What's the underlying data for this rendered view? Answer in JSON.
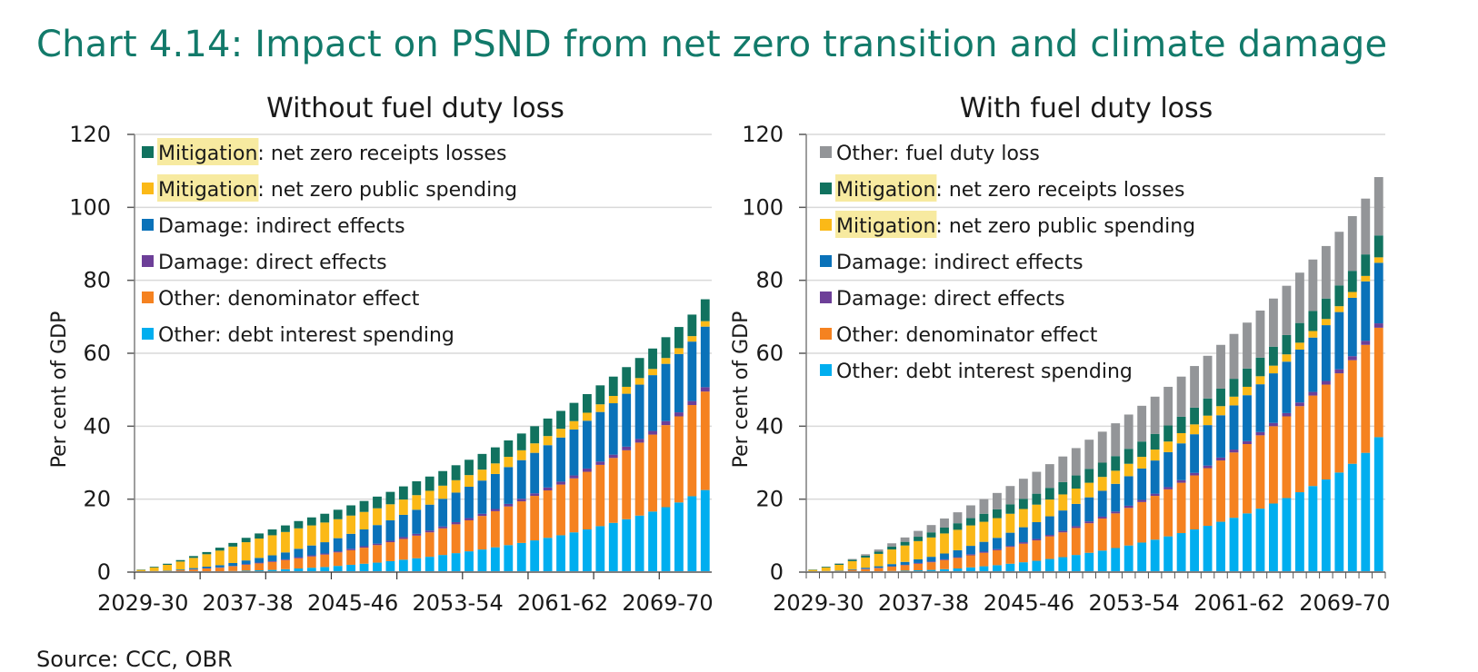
{
  "title": "Chart 4.14: Impact on PSND from net zero transition and climate damage",
  "source": "Source: CCC, OBR",
  "highlight_word": "Mitigation",
  "colors": {
    "fuel_duty": "#939598",
    "receipts": "#11725f",
    "public_spending": "#fbb917",
    "indirect": "#0a72b9",
    "direct": "#6d3f98",
    "denominator": "#f58220",
    "debt_interest": "#00aeef",
    "highlight": "#f7eaa0",
    "title": "#127a6a"
  },
  "chart_data": [
    {
      "type": "bar",
      "stacked": true,
      "title": "Without fuel duty loss",
      "xlabel": "",
      "ylabel": "Per cent of GDP",
      "ylim": [
        0,
        120
      ],
      "yticks": [
        0,
        20,
        40,
        60,
        80,
        100,
        120
      ],
      "grid": true,
      "legend_position": "top-left",
      "xtick_labels": [
        "2029-30",
        "2037-38",
        "2045-46",
        "2053-54",
        "2061-62",
        "2069-70"
      ],
      "categories": [
        "2029-30",
        "2030-31",
        "2031-32",
        "2032-33",
        "2033-34",
        "2034-35",
        "2035-36",
        "2036-37",
        "2037-38",
        "2038-39",
        "2039-40",
        "2040-41",
        "2041-42",
        "2042-43",
        "2043-44",
        "2044-45",
        "2045-46",
        "2046-47",
        "2047-48",
        "2048-49",
        "2049-50",
        "2050-51",
        "2051-52",
        "2052-53",
        "2053-54",
        "2054-55",
        "2055-56",
        "2056-57",
        "2057-58",
        "2058-59",
        "2059-60",
        "2060-61",
        "2061-62",
        "2062-63",
        "2063-64",
        "2064-65",
        "2065-66",
        "2066-67",
        "2067-68",
        "2068-69",
        "2069-70",
        "2070-71",
        "2071-72",
        "2072-73"
      ],
      "legend": [
        {
          "key": "receipts",
          "prefix": "Mitigation",
          "label": ": net zero receipts losses"
        },
        {
          "key": "public_spending",
          "prefix": "Mitigation",
          "label": ": net zero public spending"
        },
        {
          "key": "indirect",
          "prefix": "",
          "label": "Damage: indirect effects"
        },
        {
          "key": "direct",
          "prefix": "",
          "label": "Damage: direct effects"
        },
        {
          "key": "denominator",
          "prefix": "",
          "label": "Other: denominator effect"
        },
        {
          "key": "debt_interest",
          "prefix": "",
          "label": "Other: debt interest spending"
        }
      ],
      "series": [
        {
          "name": "Other: debt interest spending",
          "key": "debt_interest",
          "values": [
            0.0,
            0.0,
            0.0,
            0.1,
            0.1,
            0.2,
            0.2,
            0.3,
            0.4,
            0.5,
            0.6,
            0.8,
            1.0,
            1.2,
            1.4,
            1.7,
            2.0,
            2.3,
            2.6,
            3.0,
            3.4,
            3.8,
            4.2,
            4.7,
            5.2,
            5.7,
            6.2,
            6.8,
            7.4,
            8.0,
            8.7,
            9.4,
            10.1,
            10.9,
            11.7,
            12.6,
            13.5,
            14.5,
            15.5,
            16.6,
            17.8,
            19.1,
            20.8,
            22.5
          ]
        },
        {
          "name": "Other: denominator effect",
          "key": "denominator",
          "values": [
            0.1,
            0.2,
            0.3,
            0.4,
            0.6,
            0.8,
            1.0,
            1.3,
            1.6,
            1.9,
            2.2,
            2.5,
            2.8,
            3.1,
            3.4,
            3.7,
            4.0,
            4.4,
            4.8,
            5.2,
            5.7,
            6.2,
            6.7,
            7.3,
            7.9,
            8.5,
            9.2,
            9.9,
            10.6,
            11.4,
            12.2,
            13.0,
            13.9,
            14.8,
            15.8,
            16.8,
            17.8,
            18.9,
            20.0,
            21.1,
            22.5,
            23.6,
            25.0,
            27.0
          ]
        },
        {
          "name": "Damage: direct effects",
          "key": "direct",
          "values": [
            0.0,
            0.0,
            0.0,
            0.0,
            0.1,
            0.1,
            0.1,
            0.1,
            0.2,
            0.2,
            0.2,
            0.2,
            0.3,
            0.3,
            0.3,
            0.3,
            0.4,
            0.4,
            0.4,
            0.4,
            0.5,
            0.5,
            0.5,
            0.5,
            0.6,
            0.6,
            0.6,
            0.6,
            0.7,
            0.7,
            0.7,
            0.8,
            0.8,
            0.8,
            0.9,
            0.9,
            0.9,
            1.0,
            1.0,
            1.0,
            1.1,
            1.1,
            1.1,
            1.2
          ]
        },
        {
          "name": "Damage: indirect effects",
          "key": "indirect",
          "values": [
            0.0,
            0.1,
            0.1,
            0.2,
            0.3,
            0.4,
            0.6,
            0.8,
            1.0,
            1.3,
            1.6,
            1.9,
            2.3,
            2.7,
            3.1,
            3.6,
            4.1,
            4.6,
            5.1,
            5.6,
            6.1,
            6.6,
            7.1,
            7.6,
            8.1,
            8.6,
            9.1,
            9.6,
            10.1,
            10.6,
            11.1,
            11.6,
            12.1,
            12.6,
            13.1,
            13.6,
            14.1,
            14.5,
            14.9,
            15.3,
            15.7,
            16.0,
            16.3,
            16.6
          ]
        },
        {
          "name": "Mitigation: net zero public spending",
          "key": "public_spending",
          "values": [
            0.5,
            1.0,
            1.6,
            2.2,
            2.8,
            3.4,
            4.0,
            4.5,
            5.0,
            5.3,
            5.5,
            5.6,
            5.6,
            5.5,
            5.4,
            5.2,
            5.0,
            4.8,
            4.6,
            4.4,
            4.2,
            4.0,
            3.8,
            3.6,
            3.4,
            3.2,
            3.0,
            2.9,
            2.8,
            2.7,
            2.6,
            2.5,
            2.4,
            2.3,
            2.2,
            2.1,
            2.0,
            1.9,
            1.8,
            1.7,
            1.6,
            1.6,
            1.5,
            1.5
          ]
        },
        {
          "name": "Mitigation: net zero receipts losses",
          "key": "receipts",
          "values": [
            0.1,
            0.2,
            0.3,
            0.4,
            0.5,
            0.6,
            0.8,
            1.0,
            1.2,
            1.4,
            1.6,
            1.8,
            2.0,
            2.2,
            2.4,
            2.6,
            2.8,
            3.0,
            3.2,
            3.4,
            3.6,
            3.8,
            3.9,
            4.0,
            4.1,
            4.2,
            4.3,
            4.4,
            4.5,
            4.6,
            4.7,
            4.8,
            4.9,
            5.0,
            5.1,
            5.2,
            5.3,
            5.4,
            5.5,
            5.6,
            5.7,
            5.8,
            5.9,
            6.0
          ]
        }
      ]
    },
    {
      "type": "bar",
      "stacked": true,
      "title": "With fuel duty loss",
      "xlabel": "",
      "ylabel": "Per cent of GDP",
      "ylim": [
        0,
        120
      ],
      "yticks": [
        0,
        20,
        40,
        60,
        80,
        100,
        120
      ],
      "grid": true,
      "legend_position": "top-left",
      "xtick_labels": [
        "2029-30",
        "2037-38",
        "2045-46",
        "2053-54",
        "2061-62",
        "2069-70"
      ],
      "categories": [
        "2029-30",
        "2030-31",
        "2031-32",
        "2032-33",
        "2033-34",
        "2034-35",
        "2035-36",
        "2036-37",
        "2037-38",
        "2038-39",
        "2039-40",
        "2040-41",
        "2041-42",
        "2042-43",
        "2043-44",
        "2044-45",
        "2045-46",
        "2046-47",
        "2047-48",
        "2048-49",
        "2049-50",
        "2050-51",
        "2051-52",
        "2052-53",
        "2053-54",
        "2054-55",
        "2055-56",
        "2056-57",
        "2057-58",
        "2058-59",
        "2059-60",
        "2060-61",
        "2061-62",
        "2062-63",
        "2063-64",
        "2064-65",
        "2065-66",
        "2066-67",
        "2067-68",
        "2068-69",
        "2069-70",
        "2070-71",
        "2071-72",
        "2072-73"
      ],
      "legend": [
        {
          "key": "fuel_duty",
          "prefix": "",
          "label": "Other: fuel duty loss"
        },
        {
          "key": "receipts",
          "prefix": "Mitigation",
          "label": ": net zero receipts losses"
        },
        {
          "key": "public_spending",
          "prefix": "Mitigation",
          "label": ": net zero public spending"
        },
        {
          "key": "indirect",
          "prefix": "",
          "label": "Damage: indirect effects"
        },
        {
          "key": "direct",
          "prefix": "",
          "label": "Damage: direct effects"
        },
        {
          "key": "denominator",
          "prefix": "",
          "label": "Other: denominator effect"
        },
        {
          "key": "debt_interest",
          "prefix": "",
          "label": "Other: debt interest spending"
        }
      ],
      "series": [
        {
          "name": "Other: debt interest spending",
          "key": "debt_interest",
          "values": [
            0.0,
            0.0,
            0.0,
            0.1,
            0.1,
            0.2,
            0.3,
            0.4,
            0.5,
            0.6,
            0.8,
            1.0,
            1.3,
            1.6,
            1.9,
            2.3,
            2.7,
            3.1,
            3.6,
            4.1,
            4.7,
            5.3,
            5.9,
            6.6,
            7.3,
            8.1,
            8.9,
            9.8,
            10.7,
            11.7,
            12.7,
            13.8,
            14.9,
            16.1,
            17.4,
            18.8,
            20.3,
            21.9,
            23.6,
            25.4,
            27.3,
            29.7,
            32.7,
            37.0
          ]
        },
        {
          "name": "Other: denominator effect",
          "key": "denominator",
          "values": [
            0.1,
            0.2,
            0.3,
            0.5,
            0.7,
            0.9,
            1.2,
            1.5,
            1.8,
            2.1,
            2.5,
            2.9,
            3.3,
            3.7,
            4.1,
            4.6,
            5.1,
            5.6,
            6.2,
            6.8,
            7.4,
            8.1,
            8.8,
            9.5,
            10.3,
            11.1,
            12.0,
            12.9,
            13.8,
            14.8,
            15.8,
            16.8,
            17.9,
            19.0,
            20.1,
            21.2,
            22.4,
            23.6,
            24.8,
            26.0,
            27.2,
            28.4,
            29.6,
            30.0
          ]
        },
        {
          "name": "Damage: direct effects",
          "key": "direct",
          "values": [
            0.0,
            0.0,
            0.0,
            0.0,
            0.1,
            0.1,
            0.1,
            0.1,
            0.2,
            0.2,
            0.2,
            0.2,
            0.3,
            0.3,
            0.3,
            0.3,
            0.4,
            0.4,
            0.4,
            0.4,
            0.5,
            0.5,
            0.5,
            0.5,
            0.6,
            0.6,
            0.6,
            0.6,
            0.7,
            0.7,
            0.7,
            0.8,
            0.8,
            0.8,
            0.9,
            0.9,
            0.9,
            1.0,
            1.0,
            1.0,
            1.1,
            1.1,
            1.1,
            1.2
          ]
        },
        {
          "name": "Damage: indirect effects",
          "key": "indirect",
          "values": [
            0.0,
            0.1,
            0.1,
            0.2,
            0.3,
            0.4,
            0.6,
            0.8,
            1.0,
            1.3,
            1.6,
            1.9,
            2.3,
            2.7,
            3.1,
            3.6,
            4.1,
            4.6,
            5.1,
            5.6,
            6.1,
            6.6,
            7.1,
            7.6,
            8.1,
            8.6,
            9.1,
            9.6,
            10.1,
            10.6,
            11.1,
            11.6,
            12.1,
            12.6,
            13.1,
            13.6,
            14.1,
            14.5,
            14.9,
            15.3,
            15.7,
            16.0,
            16.3,
            16.6
          ]
        },
        {
          "name": "Mitigation: net zero public spending",
          "key": "public_spending",
          "values": [
            0.5,
            1.0,
            1.6,
            2.2,
            2.8,
            3.4,
            4.0,
            4.5,
            5.0,
            5.3,
            5.5,
            5.6,
            5.6,
            5.5,
            5.4,
            5.2,
            5.0,
            4.8,
            4.6,
            4.4,
            4.2,
            4.0,
            3.8,
            3.6,
            3.4,
            3.2,
            3.0,
            2.9,
            2.8,
            2.7,
            2.6,
            2.5,
            2.4,
            2.3,
            2.2,
            2.1,
            2.0,
            1.9,
            1.8,
            1.7,
            1.6,
            1.6,
            1.5,
            1.5
          ]
        },
        {
          "name": "Mitigation: net zero receipts losses",
          "key": "receipts",
          "values": [
            0.1,
            0.2,
            0.3,
            0.4,
            0.5,
            0.6,
            0.8,
            1.0,
            1.2,
            1.4,
            1.6,
            1.8,
            2.0,
            2.2,
            2.4,
            2.6,
            2.8,
            3.0,
            3.2,
            3.4,
            3.6,
            3.8,
            3.9,
            4.0,
            4.1,
            4.2,
            4.3,
            4.4,
            4.5,
            4.6,
            4.7,
            4.8,
            4.9,
            5.0,
            5.1,
            5.2,
            5.3,
            5.4,
            5.5,
            5.6,
            5.7,
            5.8,
            5.9,
            6.0
          ]
        },
        {
          "name": "Other: fuel duty loss",
          "key": "fuel_duty",
          "values": [
            0.0,
            0.0,
            0.1,
            0.2,
            0.4,
            0.6,
            0.9,
            1.2,
            1.6,
            2.0,
            2.5,
            3.0,
            3.5,
            4.0,
            4.5,
            5.0,
            5.5,
            6.0,
            6.5,
            7.0,
            7.5,
            8.0,
            8.5,
            9.0,
            9.4,
            9.8,
            10.2,
            10.6,
            11.0,
            11.4,
            11.7,
            12.0,
            12.3,
            12.6,
            12.9,
            13.2,
            13.5,
            13.8,
            14.1,
            14.4,
            14.7,
            15.0,
            15.3,
            16.0
          ]
        }
      ]
    }
  ]
}
